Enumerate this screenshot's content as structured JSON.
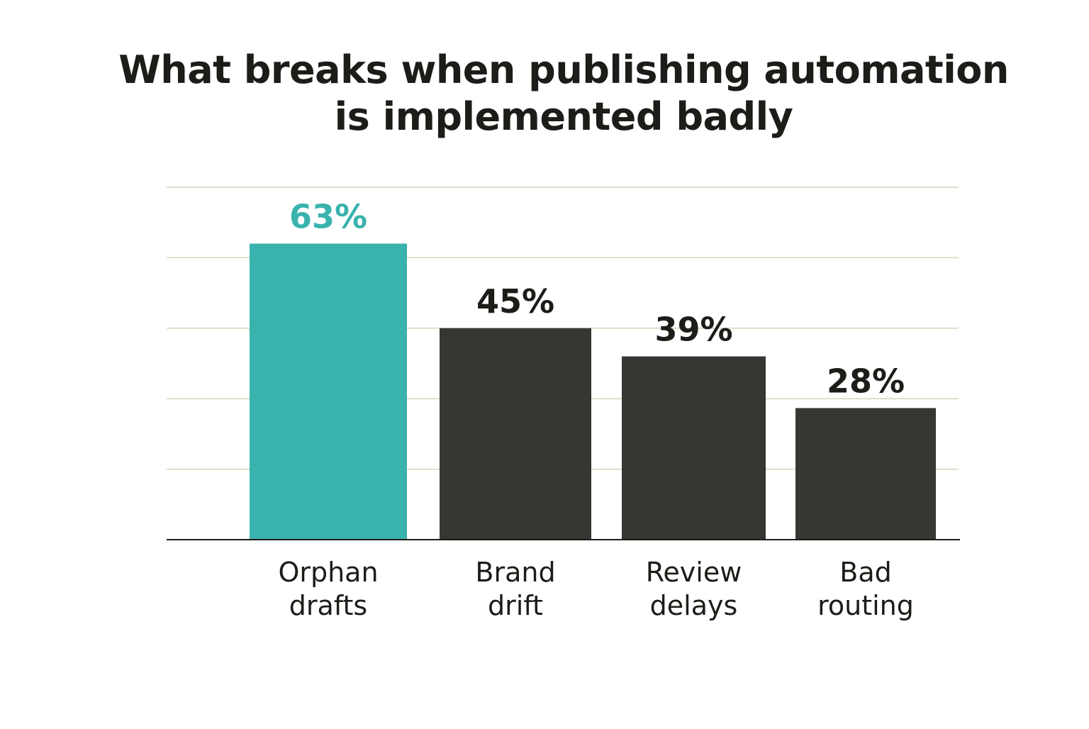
{
  "chart_data": {
    "type": "bar",
    "title": "What breaks when publishing automation\nis implemented badly",
    "xlabel": "",
    "ylabel": "",
    "categories": [
      "Orphan\ndrafts",
      "Brand\ndrift",
      "Review\ndelays",
      "Bad\nrouting"
    ],
    "values": [
      63,
      45,
      39,
      28
    ],
    "value_labels": [
      "63%",
      "45%",
      "39%",
      "28%"
    ],
    "ylim": [
      0,
      75
    ],
    "grid": true,
    "legend": "none",
    "colors": {
      "highlight": "#3ab2ae",
      "bar": "#353732",
      "highlight_label": "#3ab2ae",
      "label": "#1c1d18",
      "gridline": "#d6d4bd",
      "axis": "#1c1d18"
    },
    "highlight_index": 0
  }
}
